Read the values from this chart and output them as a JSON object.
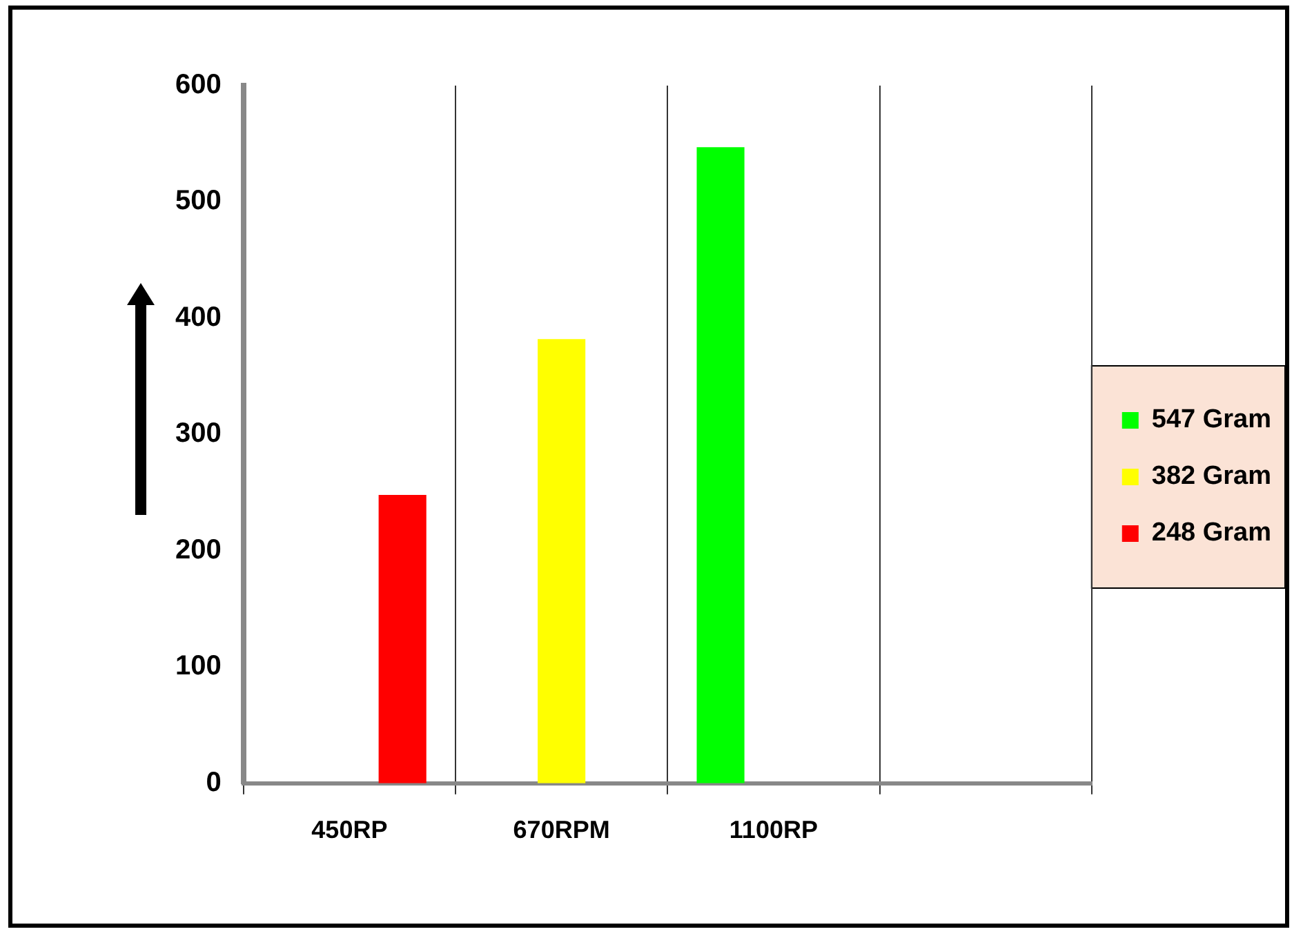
{
  "chart_data": {
    "type": "bar",
    "categories": [
      "450RP",
      "670RPM",
      "1100RP",
      null
    ],
    "series": [
      {
        "name": "547 Gram",
        "color": "#00ff00",
        "values": [
          null,
          null,
          547,
          null
        ]
      },
      {
        "name": "382 Gram",
        "color": "#ffff00",
        "values": [
          null,
          382,
          null,
          null
        ]
      },
      {
        "name": "248 Gram",
        "color": "#ff0000",
        "values": [
          248,
          0,
          null,
          null
        ]
      }
    ],
    "ylim": [
      0,
      600
    ],
    "yticks": [
      0,
      100,
      200,
      300,
      400,
      500,
      600
    ],
    "grid": "x",
    "legend": "right"
  }
}
